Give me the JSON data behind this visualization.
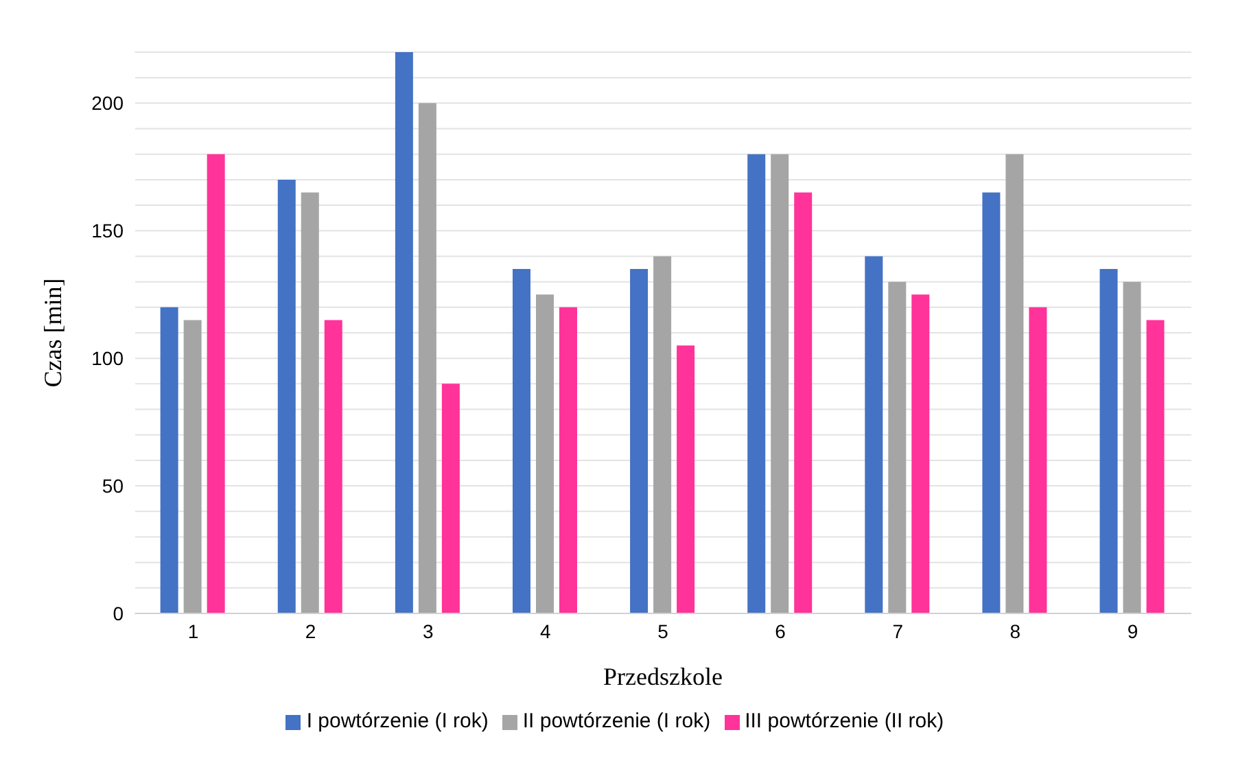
{
  "chart_data": {
    "type": "bar",
    "xlabel": "Przedszkole",
    "ylabel": "Czas [min]",
    "categories": [
      "1",
      "2",
      "3",
      "4",
      "5",
      "6",
      "7",
      "8",
      "9"
    ],
    "series": [
      {
        "name": "I powtórzenie (I rok)",
        "color": "#4472c4",
        "values": [
          120,
          170,
          220,
          135,
          135,
          180,
          140,
          165,
          135
        ]
      },
      {
        "name": "II powtórzenie (I rok)",
        "color": "#a5a5a5",
        "values": [
          115,
          165,
          200,
          125,
          140,
          180,
          130,
          180,
          130
        ]
      },
      {
        "name": "III powtórzenie (II rok)",
        "color": "#ff3399",
        "values": [
          180,
          115,
          90,
          120,
          105,
          165,
          125,
          120,
          115
        ]
      }
    ],
    "ylim": [
      0,
      220
    ],
    "yticks": [
      0,
      {
        "value": 10,
        "label": null
      },
      {
        "value": 20,
        "label": null
      },
      {
        "value": 30,
        "label": null
      },
      {
        "value": 40,
        "label": null
      },
      50,
      {
        "value": 60,
        "label": null
      },
      {
        "value": 70,
        "label": null
      },
      {
        "value": 80,
        "label": null
      },
      {
        "value": 90,
        "label": null
      },
      100,
      {
        "value": 110,
        "label": null
      },
      {
        "value": 120,
        "label": null
      },
      {
        "value": 130,
        "label": null
      },
      {
        "value": 140,
        "label": null
      },
      150,
      {
        "value": 160,
        "label": null
      },
      {
        "value": 170,
        "label": null
      },
      {
        "value": 180,
        "label": null
      },
      {
        "value": 190,
        "label": null
      },
      200,
      {
        "value": 210,
        "label": null
      },
      {
        "value": 220,
        "label": null
      }
    ],
    "grid": "y",
    "legend": "bottom"
  }
}
